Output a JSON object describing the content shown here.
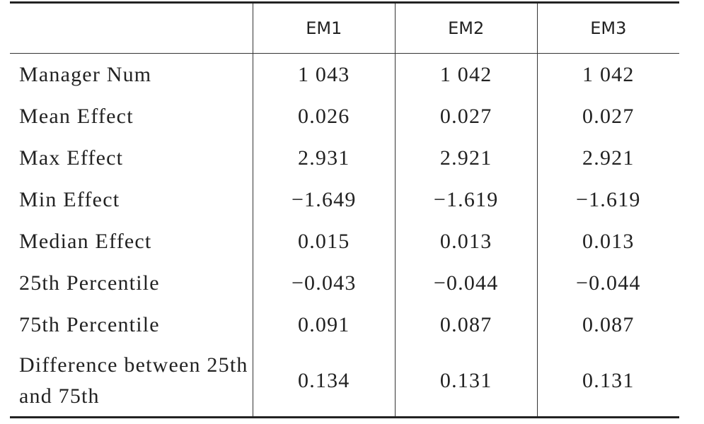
{
  "table": {
    "columns": [
      "EM1",
      "EM2",
      "EM3"
    ],
    "rows": [
      [
        "Manager Num",
        "1 043",
        "1 042",
        "1 042"
      ],
      [
        "Mean Effect",
        "0.026",
        "0.027",
        "0.027"
      ],
      [
        "Max Effect",
        "2.931",
        "2.921",
        "2.921"
      ],
      [
        "Min Effect",
        "−1.649",
        "−1.619",
        "−1.619"
      ],
      [
        "Median Effect",
        "0.015",
        "0.013",
        "0.013"
      ],
      [
        "25th Percentile",
        "−0.043",
        "−0.044",
        "−0.044"
      ],
      [
        "75th Percentile",
        "0.091",
        "0.087",
        "0.087"
      ],
      [
        "Difference between 25th and 75th",
        "0.134",
        "0.131",
        "0.131"
      ]
    ]
  }
}
